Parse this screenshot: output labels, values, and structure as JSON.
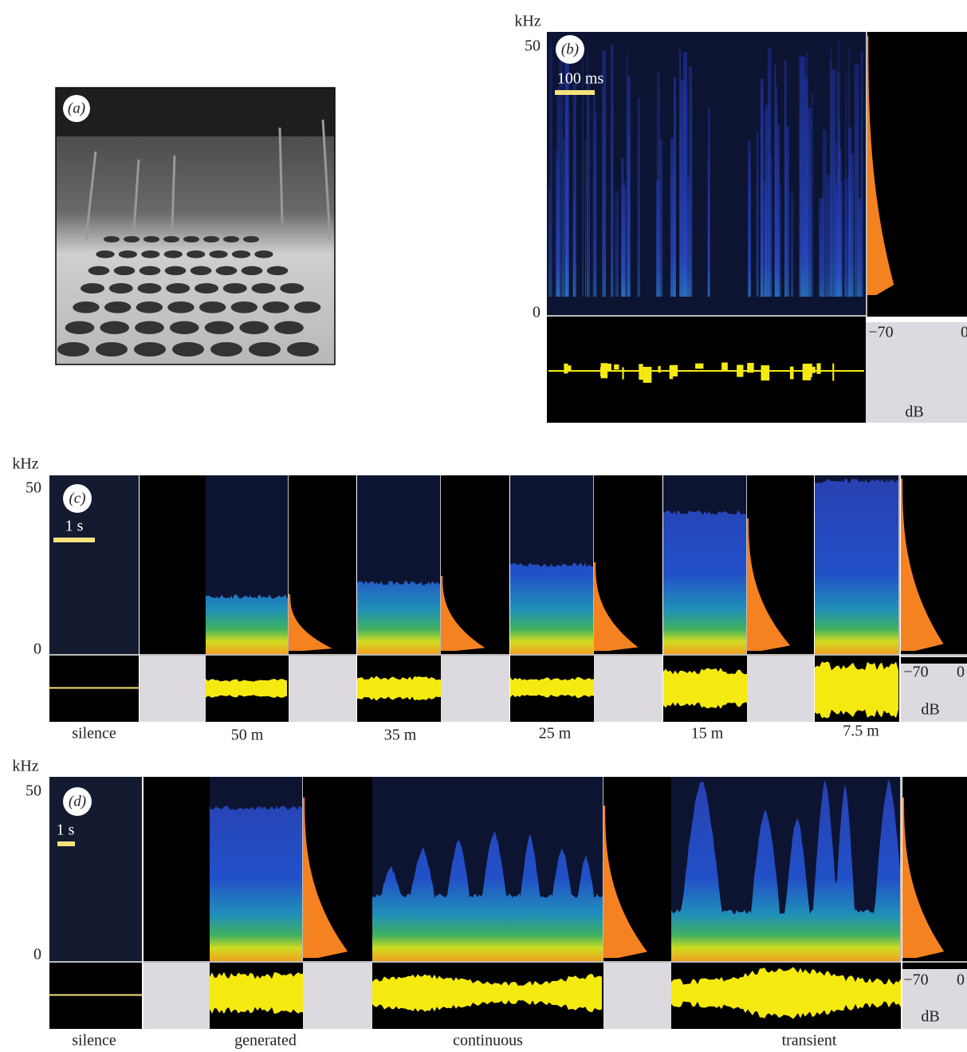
{
  "panels": [
    {
      "label": "(a)"
    },
    {
      "label": "(b)",
      "y_unit": "kHz",
      "y_ticks": [
        "50",
        "0"
      ],
      "scale_bar": "100 ms",
      "db_ticks": [
        "−70",
        "0"
      ],
      "db_unit": "dB"
    },
    {
      "label": "(c)",
      "y_unit": "kHz",
      "y_ticks": [
        "50",
        "0"
      ],
      "scale_bar": "1 s",
      "db_ticks": [
        "−70",
        "0"
      ],
      "db_unit": "dB",
      "conditions": [
        "silence",
        "50 m",
        "35 m",
        "25 m",
        "15 m",
        "7.5 m"
      ]
    },
    {
      "label": "(d)",
      "y_unit": "kHz",
      "y_ticks": [
        "50",
        "0"
      ],
      "scale_bar": "1 s",
      "db_ticks": [
        "−70",
        "0"
      ],
      "db_unit": "dB",
      "conditions": [
        "silence",
        "generated",
        "continuous",
        "transient"
      ]
    }
  ]
}
